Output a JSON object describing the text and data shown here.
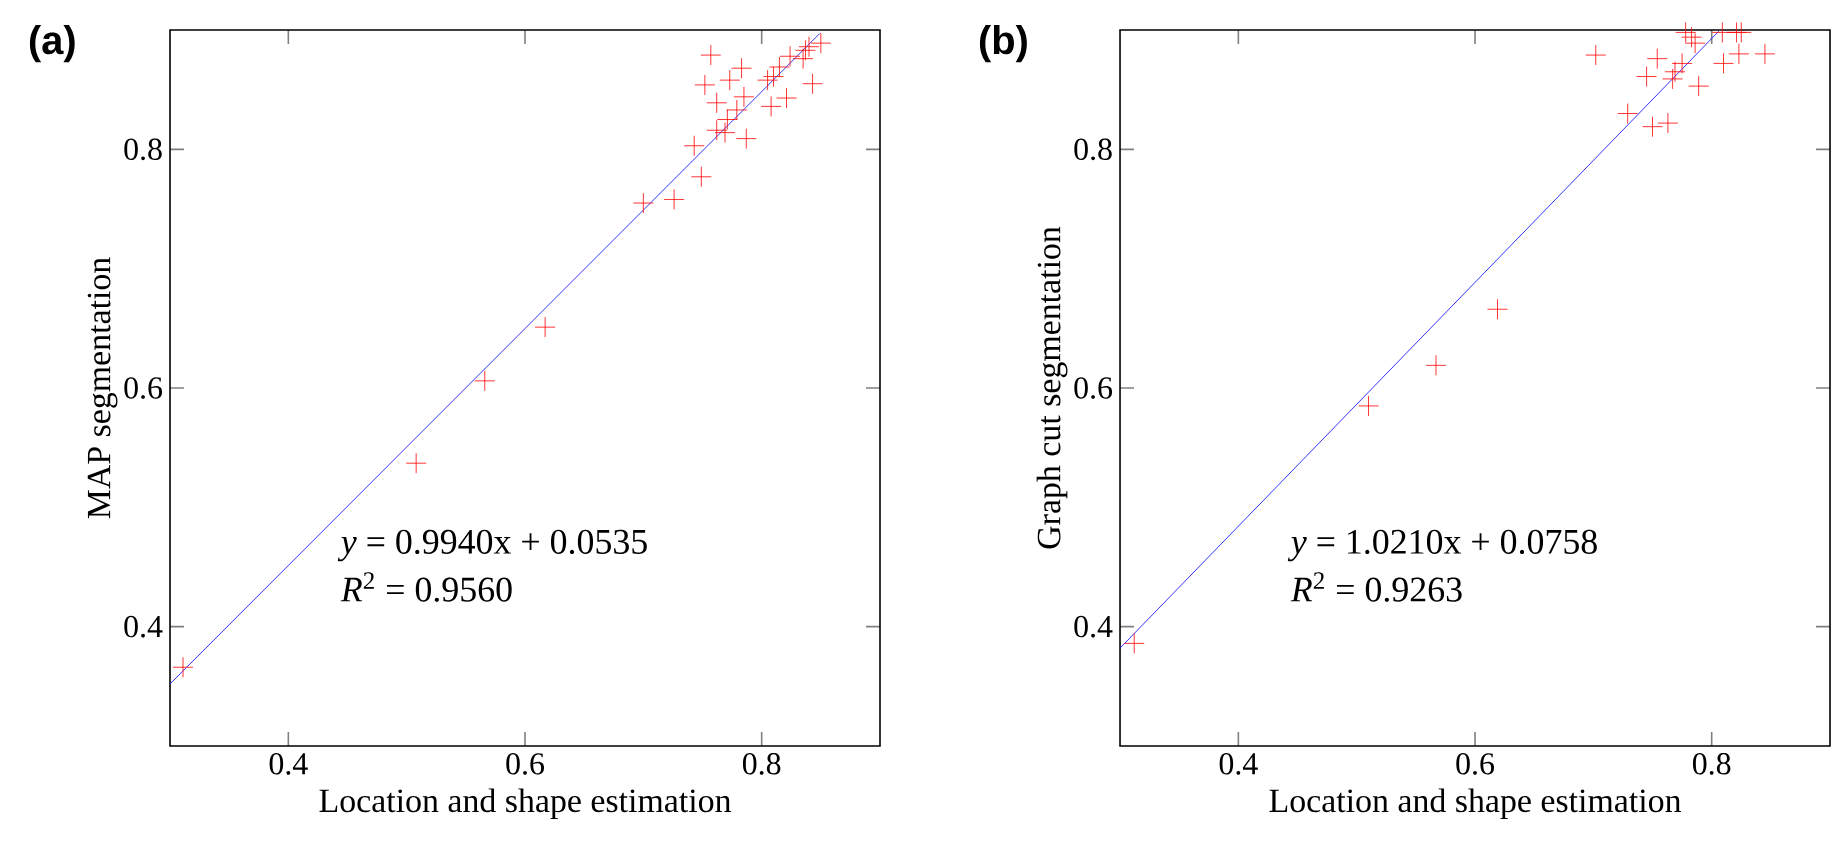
{
  "chart_data": [
    {
      "type": "scatter",
      "title": "(a)",
      "xlabel": "Location and shape estimation",
      "ylabel": "MAP segmentation",
      "xlim": [
        0.3,
        0.9
      ],
      "ylim": [
        0.3,
        0.9
      ],
      "xticks": [
        0.4,
        0.6,
        0.8
      ],
      "yticks": [
        0.4,
        0.6,
        0.8
      ],
      "marker": "cross",
      "series": [
        {
          "color": "#ff0000",
          "x": [
            0.311,
            0.508,
            0.566,
            0.617,
            0.7,
            0.726,
            0.743,
            0.749,
            0.757,
            0.752,
            0.762,
            0.762,
            0.769,
            0.771,
            0.773,
            0.779,
            0.783,
            0.785,
            0.787,
            0.805,
            0.81,
            0.808,
            0.815,
            0.821,
            0.824,
            0.835,
            0.837,
            0.843,
            0.85,
            0.84
          ],
          "values": [
            0.366,
            0.537,
            0.606,
            0.651,
            0.755,
            0.758,
            0.803,
            0.777,
            0.879,
            0.854,
            0.839,
            0.816,
            0.814,
            0.825,
            0.858,
            0.833,
            0.868,
            0.844,
            0.809,
            0.858,
            0.861,
            0.836,
            0.869,
            0.843,
            0.878,
            0.876,
            0.883,
            0.855,
            0.889,
            0.886
          ]
        },
        {
          "type": "line",
          "color": "#0000ff",
          "marker": "none",
          "x": [
            0.3,
            0.849
          ],
          "values": [
            0.352,
            0.897
          ]
        }
      ],
      "annotations": [
        "*y* = 0.9940x + 0.0535",
        "*R*$^{2}$ = 0.9560"
      ]
    },
    {
      "type": "scatter",
      "title": "(b)",
      "xlabel": "Location and shape estimation",
      "ylabel": "Graph cut segmentation",
      "xlim": [
        0.3,
        0.9
      ],
      "ylim": [
        0.3,
        0.9
      ],
      "xticks": [
        0.4,
        0.6,
        0.8
      ],
      "yticks": [
        0.4,
        0.6,
        0.8
      ],
      "marker": "cross",
      "series": [
        {
          "color": "#ff0000",
          "x": [
            0.312,
            0.51,
            0.567,
            0.619,
            0.702,
            0.729,
            0.745,
            0.75,
            0.754,
            0.763,
            0.767,
            0.769,
            0.775,
            0.778,
            0.783,
            0.786,
            0.789,
            0.809,
            0.81,
            0.821,
            0.823,
            0.825,
            0.845
          ],
          "values": [
            0.386,
            0.585,
            0.619,
            0.666,
            0.879,
            0.83,
            0.861,
            0.819,
            0.876,
            0.822,
            0.859,
            0.865,
            0.872,
            0.898,
            0.894,
            0.889,
            0.853,
            0.898,
            0.872,
            0.898,
            0.88,
            0.898,
            0.88
          ]
        },
        {
          "type": "line",
          "color": "#0000ff",
          "marker": "none",
          "x": [
            0.3,
            0.806
          ],
          "values": [
            0.382,
            0.899
          ]
        }
      ],
      "annotations": [
        "*y* = 1.0210x + 0.0758",
        "*R*$^{2}$ = 0.9263"
      ]
    }
  ]
}
